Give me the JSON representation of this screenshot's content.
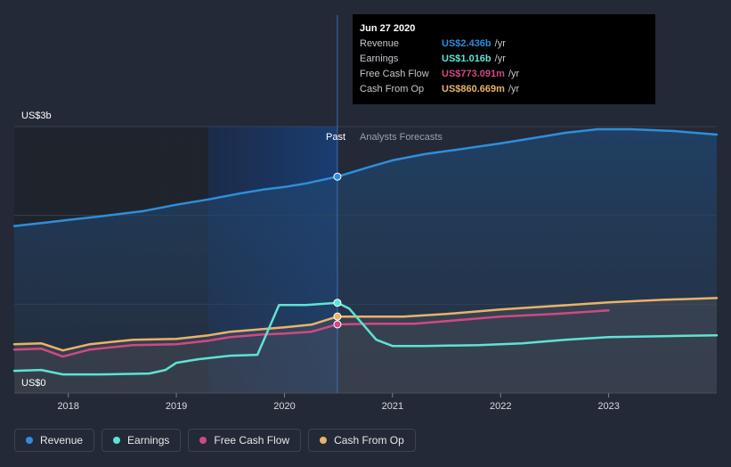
{
  "chart_data": {
    "type": "line",
    "y_axis": {
      "ylim": [
        0,
        3
      ],
      "top_label": "US$3b",
      "bottom_label": "US$0"
    },
    "x_axis": {
      "xlim": [
        2017.5,
        2024.0
      ],
      "ticks": [
        "2018",
        "2019",
        "2020",
        "2021",
        "2022",
        "2023"
      ]
    },
    "divider_x": 2020.49,
    "region_labels": {
      "past": "Past",
      "forecast": "Analysts Forecasts"
    },
    "series": [
      {
        "name": "Revenue",
        "key": "revenue",
        "color": "#2c8fdc",
        "points": [
          [
            2017.5,
            1.88
          ],
          [
            2017.8,
            1.92
          ],
          [
            2018.0,
            1.95
          ],
          [
            2018.3,
            1.99
          ],
          [
            2018.7,
            2.05
          ],
          [
            2019.0,
            2.12
          ],
          [
            2019.3,
            2.18
          ],
          [
            2019.6,
            2.25
          ],
          [
            2019.8,
            2.29
          ],
          [
            2020.0,
            2.32
          ],
          [
            2020.2,
            2.36
          ],
          [
            2020.49,
            2.436
          ],
          [
            2020.8,
            2.55
          ],
          [
            2021.0,
            2.62
          ],
          [
            2021.3,
            2.69
          ],
          [
            2021.6,
            2.74
          ],
          [
            2022.0,
            2.81
          ],
          [
            2022.3,
            2.87
          ],
          [
            2022.6,
            2.93
          ],
          [
            2022.9,
            2.97
          ],
          [
            2023.2,
            2.97
          ],
          [
            2023.6,
            2.95
          ],
          [
            2024.0,
            2.91
          ]
        ]
      },
      {
        "name": "Earnings",
        "key": "earnings",
        "color": "#5ee3d4",
        "points": [
          [
            2017.5,
            0.25
          ],
          [
            2017.75,
            0.26
          ],
          [
            2017.95,
            0.21
          ],
          [
            2018.3,
            0.21
          ],
          [
            2018.75,
            0.22
          ],
          [
            2018.9,
            0.26
          ],
          [
            2019.0,
            0.34
          ],
          [
            2019.2,
            0.38
          ],
          [
            2019.5,
            0.42
          ],
          [
            2019.75,
            0.43
          ],
          [
            2019.95,
            0.99
          ],
          [
            2020.2,
            0.99
          ],
          [
            2020.49,
            1.016
          ],
          [
            2020.6,
            0.95
          ],
          [
            2020.85,
            0.6
          ],
          [
            2021.0,
            0.53
          ],
          [
            2021.3,
            0.53
          ],
          [
            2021.8,
            0.54
          ],
          [
            2022.2,
            0.56
          ],
          [
            2022.6,
            0.6
          ],
          [
            2023.0,
            0.63
          ],
          [
            2023.5,
            0.64
          ],
          [
            2024.0,
            0.65
          ]
        ]
      },
      {
        "name": "Free Cash Flow",
        "key": "fcf",
        "color": "#cf4a82",
        "points": [
          [
            2017.5,
            0.49
          ],
          [
            2017.75,
            0.5
          ],
          [
            2017.95,
            0.41
          ],
          [
            2018.2,
            0.49
          ],
          [
            2018.6,
            0.54
          ],
          [
            2019.0,
            0.55
          ],
          [
            2019.3,
            0.59
          ],
          [
            2019.5,
            0.63
          ],
          [
            2019.8,
            0.66
          ],
          [
            2020.0,
            0.67
          ],
          [
            2020.25,
            0.69
          ],
          [
            2020.49,
            0.773
          ],
          [
            2020.8,
            0.78
          ],
          [
            2021.2,
            0.78
          ],
          [
            2021.6,
            0.82
          ],
          [
            2022.0,
            0.86
          ],
          [
            2022.5,
            0.89
          ],
          [
            2023.0,
            0.93
          ]
        ]
      },
      {
        "name": "Cash From Op",
        "key": "cfo",
        "color": "#e8b36a",
        "points": [
          [
            2017.5,
            0.55
          ],
          [
            2017.75,
            0.56
          ],
          [
            2017.95,
            0.48
          ],
          [
            2018.2,
            0.55
          ],
          [
            2018.6,
            0.6
          ],
          [
            2019.0,
            0.61
          ],
          [
            2019.3,
            0.65
          ],
          [
            2019.5,
            0.69
          ],
          [
            2019.8,
            0.72
          ],
          [
            2020.0,
            0.74
          ],
          [
            2020.25,
            0.77
          ],
          [
            2020.49,
            0.861
          ],
          [
            2020.8,
            0.86
          ],
          [
            2021.1,
            0.86
          ],
          [
            2021.5,
            0.89
          ],
          [
            2022.0,
            0.94
          ],
          [
            2022.5,
            0.98
          ],
          [
            2023.0,
            1.02
          ],
          [
            2023.5,
            1.05
          ],
          [
            2024.0,
            1.07
          ]
        ]
      }
    ]
  },
  "tooltip": {
    "date": "Jun 27 2020",
    "rows": [
      {
        "label": "Revenue",
        "value": "US$2.436b",
        "unit": "/yr",
        "color": "#2c8fdc"
      },
      {
        "label": "Earnings",
        "value": "US$1.016b",
        "unit": "/yr",
        "color": "#5ee3d4"
      },
      {
        "label": "Free Cash Flow",
        "value": "US$773.091m",
        "unit": "/yr",
        "color": "#cf4a82"
      },
      {
        "label": "Cash From Op",
        "value": "US$860.669m",
        "unit": "/yr",
        "color": "#e8b36a"
      }
    ]
  },
  "legend": [
    {
      "label": "Revenue",
      "color": "#2c8fdc"
    },
    {
      "label": "Earnings",
      "color": "#5ee3d4"
    },
    {
      "label": "Free Cash Flow",
      "color": "#cf4a82"
    },
    {
      "label": "Cash From Op",
      "color": "#e8b36a"
    }
  ]
}
